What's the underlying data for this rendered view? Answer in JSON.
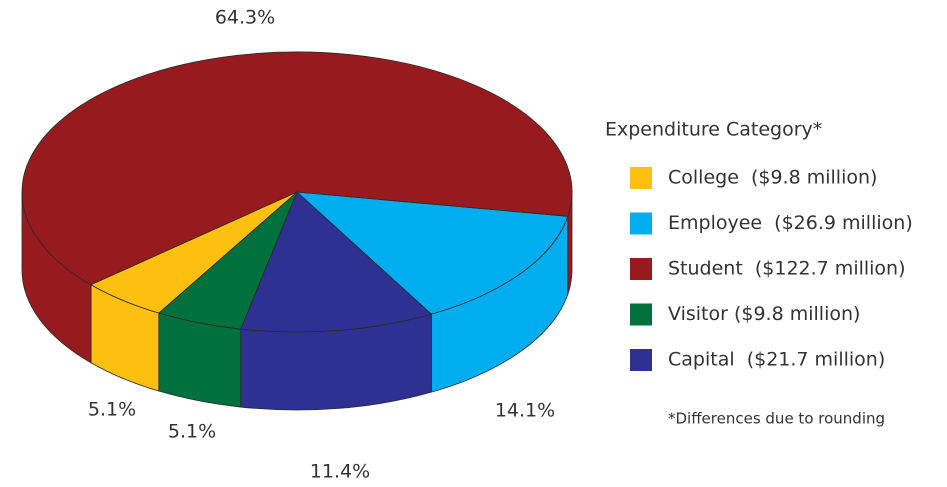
{
  "chart_data": {
    "type": "pie3d",
    "legend_title": "Expenditure Category*",
    "note": "*Differences due to rounding",
    "categories": [
      "College  ($9.8 million)",
      "Employee  ($26.9 million)",
      "Student  ($122.7 million)",
      "Visitor ($9.8 million)",
      "Capital  ($21.7 million)"
    ],
    "values": [
      5.1,
      14.1,
      64.3,
      5.1,
      11.4
    ],
    "value_labels": [
      "5.1%",
      "14.1%",
      "64.3%",
      "5.1%",
      "11.4%"
    ],
    "colors": [
      "#fdc010",
      "#00aeef",
      "#971b1e",
      "#00703c",
      "#2e3192"
    ],
    "legend": "right"
  }
}
